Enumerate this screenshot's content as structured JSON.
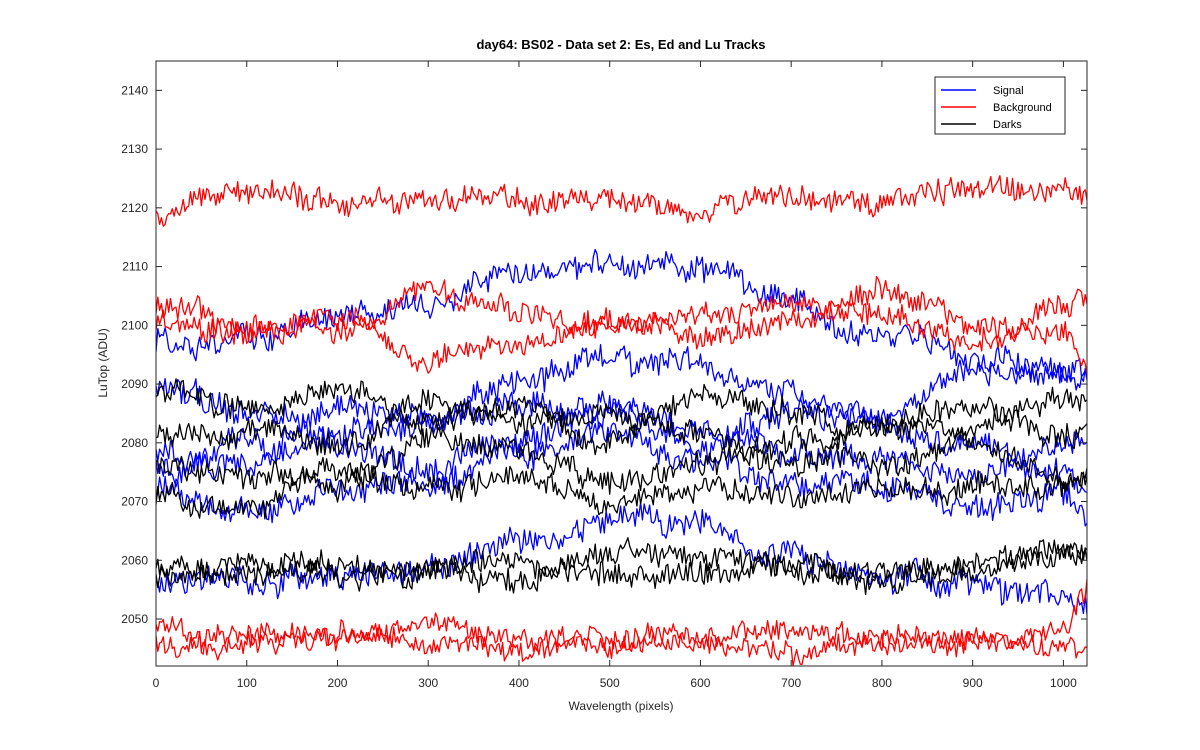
{
  "chart_data": {
    "type": "line",
    "title": "day64: BS02 - Data set 2: Es, Ed and Lu Tracks",
    "xlabel": "Wavelength (pixels)",
    "ylabel": "LuTop (ADU)",
    "xlim": [
      0,
      1026
    ],
    "ylim": [
      2042,
      2145
    ],
    "xticks": [
      0,
      100,
      200,
      300,
      400,
      500,
      600,
      700,
      800,
      900,
      1000
    ],
    "yticks": [
      2050,
      2060,
      2070,
      2080,
      2090,
      2100,
      2110,
      2120,
      2130,
      2140
    ],
    "legend_position": "top-right",
    "colors": {
      "Signal": "#0000ff",
      "Background": "#ff0000",
      "Darks": "#000000"
    },
    "x_sample_points": [
      0,
      100,
      200,
      300,
      400,
      500,
      600,
      700,
      800,
      900,
      1000,
      1026
    ],
    "series": [
      {
        "name": "Signal",
        "color": "#0000ff",
        "noise": 2.0,
        "values": [
          2097,
          2098,
          2101,
          2104,
          2110,
          2110,
          2110,
          2104,
          2098,
          2095,
          2092,
          2090
        ]
      },
      {
        "name": "Signal",
        "color": "#0000ff",
        "noise": 2.0,
        "values": [
          2090,
          2085,
          2081,
          2083,
          2090,
          2095,
          2092,
          2088,
          2085,
          2092,
          2092,
          2091
        ]
      },
      {
        "name": "Signal",
        "color": "#0000ff",
        "noise": 2.0,
        "values": [
          2078,
          2076,
          2086,
          2085,
          2086,
          2085,
          2079,
          2086,
          2083,
          2080,
          2075,
          2071
        ]
      },
      {
        "name": "Signal",
        "color": "#0000ff",
        "noise": 2.0,
        "values": [
          2075,
          2079,
          2079,
          2076,
          2080,
          2086,
          2082,
          2078,
          2077,
          2074,
          2080,
          2081
        ]
      },
      {
        "name": "Signal",
        "color": "#0000ff",
        "noise": 2.0,
        "values": [
          2072,
          2068,
          2072,
          2073,
          2078,
          2082,
          2076,
          2072,
          2073,
          2069,
          2071,
          2068
        ]
      },
      {
        "name": "Signal",
        "color": "#0000ff",
        "noise": 2.0,
        "values": [
          2057,
          2056,
          2058,
          2059,
          2063,
          2067,
          2066,
          2060,
          2057,
          2056,
          2054,
          2053
        ]
      },
      {
        "name": "Background",
        "color": "#ff0000",
        "noise": 1.8,
        "values": [
          2119,
          2123,
          2121,
          2122,
          2121,
          2121,
          2120,
          2121,
          2121,
          2123,
          2123,
          2122
        ]
      },
      {
        "name": "Background",
        "color": "#ff0000",
        "noise": 1.8,
        "values": [
          2104,
          2099,
          2099,
          2106,
          2102,
          2099,
          2102,
          2103,
          2102,
          2097,
          2103,
          2105
        ]
      },
      {
        "name": "Background",
        "color": "#ff0000",
        "noise": 1.8,
        "values": [
          2100,
          2099,
          2101,
          2094,
          2097,
          2101,
          2098,
          2101,
          2106,
          2100,
          2098,
          2093
        ]
      },
      {
        "name": "Background",
        "color": "#ff0000",
        "noise": 1.6,
        "values": [
          2049,
          2047,
          2048,
          2048,
          2047,
          2047,
          2047,
          2048,
          2047,
          2046,
          2048,
          2054
        ]
      },
      {
        "name": "Background",
        "color": "#ff0000",
        "noise": 1.6,
        "values": [
          2046,
          2045,
          2047,
          2046,
          2045,
          2046,
          2046,
          2045,
          2046,
          2047,
          2045,
          2043
        ]
      },
      {
        "name": "Darks",
        "color": "#000000",
        "noise": 1.8,
        "values": [
          2089,
          2086,
          2089,
          2083,
          2086,
          2080,
          2088,
          2085,
          2082,
          2082,
          2087,
          2087
        ]
      },
      {
        "name": "Darks",
        "color": "#000000",
        "noise": 1.8,
        "values": [
          2081,
          2082,
          2080,
          2086,
          2084,
          2085,
          2082,
          2076,
          2084,
          2086,
          2081,
          2083
        ]
      },
      {
        "name": "Darks",
        "color": "#000000",
        "noise": 1.8,
        "values": [
          2076,
          2075,
          2073,
          2080,
          2078,
          2073,
          2077,
          2080,
          2076,
          2080,
          2074,
          2073
        ]
      },
      {
        "name": "Darks",
        "color": "#000000",
        "noise": 1.8,
        "values": [
          2071,
          2069,
          2075,
          2072,
          2074,
          2069,
          2072,
          2070,
          2072,
          2072,
          2073,
          2075
        ]
      },
      {
        "name": "Darks",
        "color": "#000000",
        "noise": 1.8,
        "values": [
          2059,
          2059,
          2060,
          2058,
          2057,
          2061,
          2061,
          2058,
          2057,
          2059,
          2060,
          2059
        ]
      },
      {
        "name": "Darks",
        "color": "#000000",
        "noise": 1.8,
        "values": [
          2057,
          2058,
          2058,
          2057,
          2060,
          2058,
          2057,
          2059,
          2058,
          2059,
          2062,
          2061
        ]
      }
    ]
  },
  "legend": {
    "items": [
      {
        "label": "Signal",
        "color": "#0000ff"
      },
      {
        "label": "Background",
        "color": "#ff0000"
      },
      {
        "label": "Darks",
        "color": "#000000"
      }
    ]
  }
}
